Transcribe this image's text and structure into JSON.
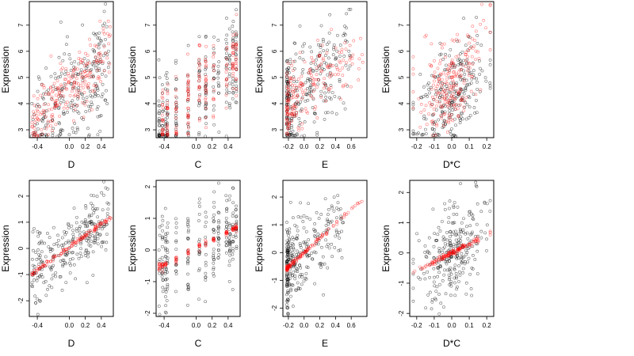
{
  "chart_data": [
    {
      "type": "scatter",
      "row": 0,
      "col": 0,
      "xlabel": "D",
      "ylabel": "Expression",
      "xlim": [
        -0.5,
        0.55
      ],
      "ylim": [
        2.7,
        7.9
      ],
      "xticks": [
        -0.4,
        0,
        0.2,
        0.4
      ],
      "xtick_labels": [
        "-0.4",
        "0.0",
        "0.2",
        "0.4"
      ],
      "yticks": [
        3,
        4,
        5,
        6,
        7
      ],
      "ytick_labels": [
        "3",
        "4",
        "5",
        "6",
        "7"
      ],
      "grid": false,
      "legend": "none",
      "series": [
        {
          "color": "#000000",
          "marker": "open-circle",
          "n_points": 250,
          "x_spread": "uniform",
          "x_range": [
            -0.47,
            0.5
          ],
          "intercept": 4.4,
          "slope": 2.8,
          "noise": 1.0,
          "curvature": 0
        },
        {
          "color": "#ff0000",
          "marker": "open-circle",
          "n_points": 220,
          "x_spread": "uniform",
          "x_range": [
            -0.47,
            0.52
          ],
          "intercept": 4.6,
          "slope": 3.0,
          "noise": 0.65,
          "curvature": 0
        }
      ]
    },
    {
      "type": "scatter",
      "row": 0,
      "col": 1,
      "xlabel": "C",
      "ylabel": "Expression",
      "xlim": [
        -0.5,
        0.55
      ],
      "ylim": [
        2.7,
        7.9
      ],
      "xticks": [
        -0.4,
        0,
        0.2,
        0.4
      ],
      "xtick_labels": [
        "-0.4",
        "0.0",
        "0.2",
        "0.4"
      ],
      "yticks": [
        3,
        4,
        5,
        6,
        7
      ],
      "ytick_labels": [
        "3",
        "4",
        "5",
        "6",
        "7"
      ],
      "grid": false,
      "legend": "none",
      "series": [
        {
          "color": "#000000",
          "marker": "open-circle",
          "n_points": 250,
          "x_spread": "columns",
          "x_columns": [
            -0.46,
            -0.42,
            -0.38,
            -0.36,
            -0.25,
            -0.1,
            0.04,
            0.12,
            0.22,
            0.28,
            0.38,
            0.42,
            0.46,
            0.5
          ],
          "intercept": 4.3,
          "slope": 2.4,
          "noise": 1.0,
          "curvature": 0
        },
        {
          "color": "#ff0000",
          "marker": "open-circle",
          "n_points": 200,
          "x_spread": "columns",
          "x_columns": [
            -0.42,
            -0.36,
            -0.25,
            -0.1,
            0.04,
            0.12,
            0.22,
            0.38,
            0.46,
            0.5
          ],
          "intercept": 4.4,
          "slope": 2.6,
          "noise": 0.7,
          "curvature": 0
        }
      ]
    },
    {
      "type": "scatter",
      "row": 0,
      "col": 2,
      "xlabel": "E",
      "ylabel": "Expression",
      "xlim": [
        -0.27,
        0.8
      ],
      "ylim": [
        2.7,
        7.9
      ],
      "xticks": [
        -0.2,
        0,
        0.2,
        0.4,
        0.6
      ],
      "xtick_labels": [
        "-0.2",
        "0.0",
        "0.2",
        "0.4",
        "0.6"
      ],
      "yticks": [
        3,
        4,
        5,
        6,
        7
      ],
      "ytick_labels": [
        "3",
        "4",
        "5",
        "6",
        "7"
      ],
      "grid": false,
      "legend": "none",
      "series": [
        {
          "color": "#000000",
          "marker": "open-circle",
          "n_points": 270,
          "x_spread": "skewed",
          "x_range": [
            -0.22,
            0.6
          ],
          "intercept": 4.5,
          "slope": 2.2,
          "noise": 1.0,
          "curvature": 0
        },
        {
          "color": "#ff0000",
          "marker": "open-circle",
          "n_points": 200,
          "x_spread": "skewed",
          "x_range": [
            -0.22,
            0.75
          ],
          "intercept": 4.5,
          "slope": 2.3,
          "noise": 0.7,
          "curvature": 0
        }
      ]
    },
    {
      "type": "scatter",
      "row": 0,
      "col": 3,
      "xlabel": "D*C",
      "ylabel": "Expression",
      "xlim": [
        -0.24,
        0.24
      ],
      "ylim": [
        2.7,
        7.9
      ],
      "xticks": [
        -0.2,
        -0.1,
        0,
        0.1,
        0.2
      ],
      "xtick_labels": [
        "-0.2",
        "-0.1",
        "0.0",
        "0.1",
        "0.2"
      ],
      "yticks": [
        3,
        4,
        5,
        6,
        7
      ],
      "ytick_labels": [
        "3",
        "4",
        "5",
        "6",
        "7"
      ],
      "grid": false,
      "legend": "none",
      "series": [
        {
          "color": "#000000",
          "marker": "open-circle",
          "n_points": 250,
          "x_spread": "centered",
          "x_range": [
            -0.22,
            0.22
          ],
          "intercept": 4.4,
          "slope": 5.0,
          "noise": 1.0,
          "curvature": 0
        },
        {
          "color": "#ff0000",
          "marker": "open-circle",
          "n_points": 220,
          "x_spread": "centered",
          "x_range": [
            -0.22,
            0.22
          ],
          "intercept": 4.6,
          "slope": 6.0,
          "noise": 0.8,
          "curvature": 30
        }
      ]
    },
    {
      "type": "scatter",
      "row": 1,
      "col": 0,
      "xlabel": "D",
      "ylabel": "Expression",
      "xlim": [
        -0.5,
        0.55
      ],
      "ylim": [
        -2.6,
        2.6
      ],
      "xticks": [
        -0.4,
        0,
        0.2,
        0.4
      ],
      "xtick_labels": [
        "-0.4",
        "0.0",
        "0.2",
        "0.4"
      ],
      "yticks": [
        -2,
        -1,
        0,
        1,
        2
      ],
      "ytick_labels": [
        "-2",
        "-1",
        "0",
        "1",
        "2"
      ],
      "grid": false,
      "legend": "none",
      "series": [
        {
          "color": "#000000",
          "marker": "open-circle",
          "n_points": 260,
          "x_spread": "uniform",
          "x_range": [
            -0.47,
            0.5
          ],
          "intercept": 0.05,
          "slope": 2.2,
          "noise": 0.65,
          "curvature": 0
        },
        {
          "color": "#ff0000",
          "marker": "open-circle",
          "n_points": 120,
          "x_spread": "uniform",
          "x_range": [
            -0.47,
            0.52
          ],
          "intercept": 0.05,
          "slope": 2.2,
          "noise": 0.04,
          "curvature": 0
        }
      ]
    },
    {
      "type": "scatter",
      "row": 1,
      "col": 1,
      "xlabel": "C",
      "ylabel": "Expression",
      "xlim": [
        -0.5,
        0.55
      ],
      "ylim": [
        -2.1,
        2.2
      ],
      "xticks": [
        -0.4,
        0,
        0.2,
        0.4
      ],
      "xtick_labels": [
        "-0.4",
        "0.0",
        "0.2",
        "0.4"
      ],
      "yticks": [
        -2,
        -1,
        0,
        1,
        2
      ],
      "ytick_labels": [
        "-2",
        "-1",
        "0",
        "1",
        "2"
      ],
      "grid": false,
      "legend": "none",
      "series": [
        {
          "color": "#000000",
          "marker": "open-circle",
          "n_points": 260,
          "x_spread": "columns",
          "x_columns": [
            -0.46,
            -0.42,
            -0.38,
            -0.36,
            -0.25,
            -0.1,
            0.04,
            0.12,
            0.22,
            0.28,
            0.38,
            0.42,
            0.46,
            0.5
          ],
          "intercept": 0.05,
          "slope": 1.3,
          "noise": 0.7,
          "curvature": 0
        },
        {
          "color": "#ff0000",
          "marker": "open-circle",
          "n_points": 110,
          "x_spread": "columns",
          "x_columns": [
            -0.46,
            -0.42,
            -0.38,
            -0.25,
            -0.1,
            0.04,
            0.12,
            0.22,
            0.38,
            0.46,
            0.5
          ],
          "intercept": 0.05,
          "slope": 1.3,
          "noise": 0.05,
          "curvature": 0
        }
      ]
    },
    {
      "type": "scatter",
      "row": 1,
      "col": 2,
      "xlabel": "E",
      "ylabel": "Expression",
      "xlim": [
        -0.27,
        0.8
      ],
      "ylim": [
        -2.3,
        2.6
      ],
      "xticks": [
        -0.2,
        0,
        0.2,
        0.4,
        0.6
      ],
      "xtick_labels": [
        "-0.2",
        "0.0",
        "0.2",
        "0.4",
        "0.6"
      ],
      "yticks": [
        -2,
        -1,
        0,
        1,
        2
      ],
      "ytick_labels": [
        "-2",
        "-1",
        "0",
        "1",
        "2"
      ],
      "grid": false,
      "legend": "none",
      "series": [
        {
          "color": "#000000",
          "marker": "open-circle",
          "n_points": 280,
          "x_spread": "skewed",
          "x_range": [
            -0.22,
            0.5
          ],
          "intercept": 0.0,
          "slope": 2.5,
          "noise": 0.7,
          "curvature": 0
        },
        {
          "color": "#ff0000",
          "marker": "open-circle",
          "n_points": 130,
          "x_spread": "skewed",
          "x_range": [
            -0.22,
            0.75
          ],
          "intercept": 0.0,
          "slope": 2.6,
          "noise": 0.04,
          "curvature": 0
        }
      ]
    },
    {
      "type": "scatter",
      "row": 1,
      "col": 3,
      "xlabel": "D*C",
      "ylabel": "Expression",
      "xlim": [
        -0.24,
        0.24
      ],
      "ylim": [
        -2.1,
        2.4
      ],
      "xticks": [
        -0.2,
        -0.1,
        0,
        0.1,
        0.2
      ],
      "xtick_labels": [
        "-0.2",
        "-0.1",
        "0.0",
        "0.1",
        "0.2"
      ],
      "yticks": [
        -2,
        -1,
        0,
        1,
        2
      ],
      "ytick_labels": [
        "-2",
        "-1",
        "0",
        "1",
        "2"
      ],
      "grid": false,
      "legend": "none",
      "series": [
        {
          "color": "#000000",
          "marker": "open-circle",
          "n_points": 270,
          "x_spread": "centered",
          "x_range": [
            -0.22,
            0.22
          ],
          "intercept": 0.0,
          "slope": 2.8,
          "noise": 0.75,
          "curvature": 0
        },
        {
          "color": "#ff0000",
          "marker": "open-circle",
          "n_points": 130,
          "x_spread": "centered",
          "x_range": [
            -0.22,
            0.22
          ],
          "intercept": 0.0,
          "slope": 3.0,
          "noise": 0.04,
          "curvature": 0
        }
      ]
    }
  ]
}
